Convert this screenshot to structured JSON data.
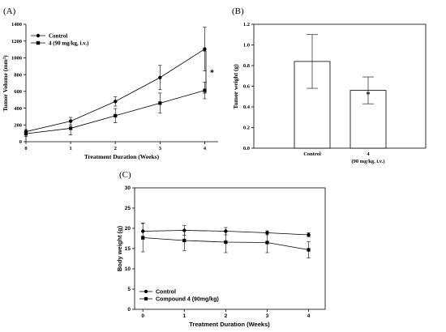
{
  "chart_data": [
    {
      "type": "line",
      "panel_label": "(A)",
      "xlabel": "Treatment Duration (Weeks)",
      "ylabel_parts": [
        "Tumor Volume (mm",
        "3",
        ")"
      ],
      "x": [
        0,
        1,
        2,
        3,
        4
      ],
      "xticks": [
        "0",
        "1",
        "2",
        "3",
        "4"
      ],
      "yticks": [
        "0",
        "200",
        "400",
        "600",
        "800",
        "1000",
        "1200",
        "1400"
      ],
      "xlim": [
        0,
        4.3
      ],
      "ylim": [
        0,
        1400
      ],
      "series": [
        {
          "name": "Control",
          "marker": "circle",
          "values": [
            120,
            245,
            480,
            765,
            1105
          ],
          "err": [
            25,
            45,
            55,
            145,
            260
          ]
        },
        {
          "name": "4 (90 mg/kg, i.v.)",
          "marker": "square",
          "values": [
            95,
            160,
            310,
            460,
            612
          ],
          "err": [
            30,
            80,
            85,
            120,
            100
          ]
        }
      ],
      "annotation": "*",
      "legend_position": "top-left",
      "grid": false
    },
    {
      "type": "bar",
      "panel_label": "(B)",
      "ylabel": "Tumor weight (g)",
      "categories": [
        "Control",
        "4"
      ],
      "category_sublabels": [
        "",
        "(90 mg/kg, i.v.)"
      ],
      "values": [
        0.84,
        0.56
      ],
      "err": [
        0.26,
        0.13
      ],
      "yticks": [
        "0.0",
        "0.2",
        "0.4",
        "0.6",
        "0.8",
        "1.0",
        "1.2"
      ],
      "ylim": [
        0,
        1.2
      ],
      "annotation": "*",
      "grid": false
    },
    {
      "type": "line",
      "panel_label": "(C)",
      "xlabel": "Treatment Duration (Weeks)",
      "ylabel": "Body weight (g)",
      "x": [
        0,
        1,
        2,
        3,
        4
      ],
      "xticks": [
        "0",
        "1",
        "2",
        "3",
        "4"
      ],
      "yticks": [
        "0",
        "5",
        "10",
        "15",
        "20",
        "25",
        "30"
      ],
      "xlim": [
        -0.2,
        4.4
      ],
      "ylim": [
        0,
        30
      ],
      "series": [
        {
          "name": "Control",
          "marker": "circle",
          "values": [
            19.3,
            19.5,
            19.3,
            18.9,
            18.4
          ],
          "err": [
            2.0,
            1.2,
            0.9,
            0.5,
            0.5
          ]
        },
        {
          "name": "Compound 4 (90mg/kg)",
          "marker": "square",
          "values": [
            17.7,
            17.0,
            16.6,
            16.5,
            14.7
          ],
          "err": [
            3.5,
            2.5,
            2.6,
            2.5,
            2.0
          ]
        }
      ],
      "legend_position": "bottom-left",
      "grid": false
    }
  ]
}
